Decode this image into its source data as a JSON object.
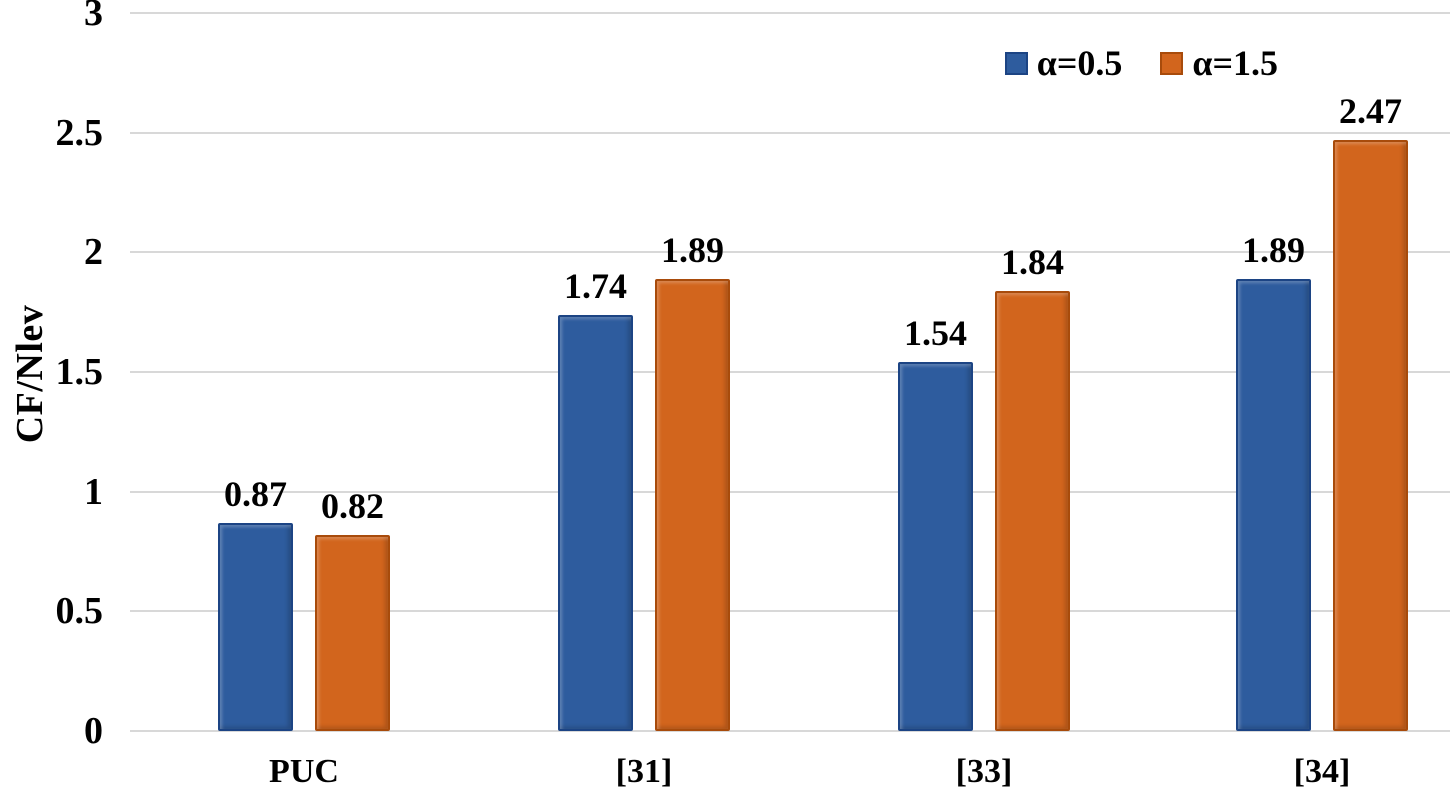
{
  "chart_data": {
    "type": "bar",
    "title": "",
    "xlabel": "",
    "ylabel": "CF/Nlev",
    "categories": [
      "PUC",
      "[31]",
      "[33]",
      "[34]"
    ],
    "series": [
      {
        "name": "α=0.5",
        "color": "#2E5C9E",
        "border_color": "#1C4484",
        "values": [
          0.87,
          1.74,
          1.54,
          1.89
        ]
      },
      {
        "name": "α=1.5",
        "color": "#D2651D",
        "border_color": "#A84B0B",
        "values": [
          0.82,
          1.89,
          1.84,
          2.47
        ]
      }
    ],
    "yticks": [
      0,
      0.5,
      1,
      1.5,
      2,
      2.5,
      3
    ],
    "ylim": [
      0,
      3
    ],
    "grid": "horizontal",
    "gridline_color": "#D8D8D8",
    "legend_position": "top-right",
    "value_labels": true,
    "background_color": "#FFFFFF"
  }
}
